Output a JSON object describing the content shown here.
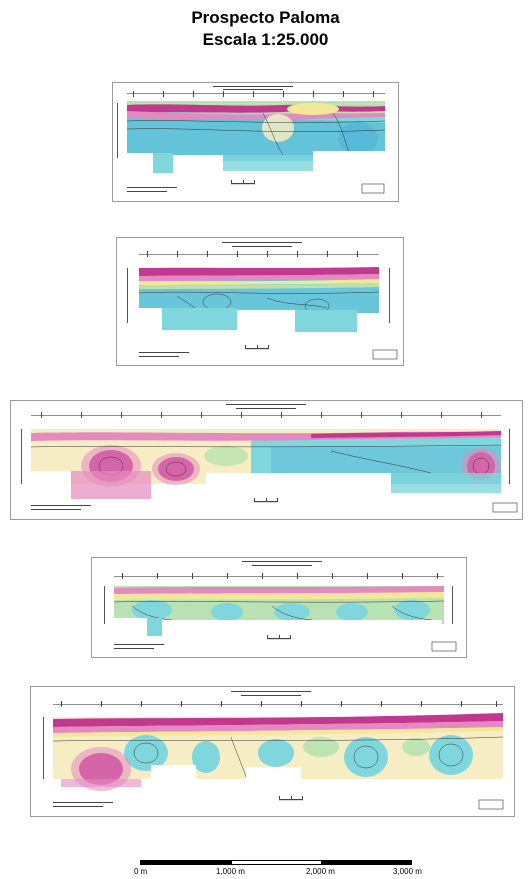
{
  "header": {
    "title": "Prospecto Paloma",
    "subtitle": "Escala 1:25.000"
  },
  "scale": {
    "labels": [
      "0 m",
      "1,000 m",
      "2,000 m",
      "3,000 m"
    ]
  },
  "colors": {
    "magenta": "#c2388f",
    "pink": "#e58ac0",
    "cream": "#f6edc4",
    "yellow": "#f3e79a",
    "green": "#b9e2b2",
    "cyan": "#7fd6dc",
    "blue": "#4fb3d7"
  }
}
